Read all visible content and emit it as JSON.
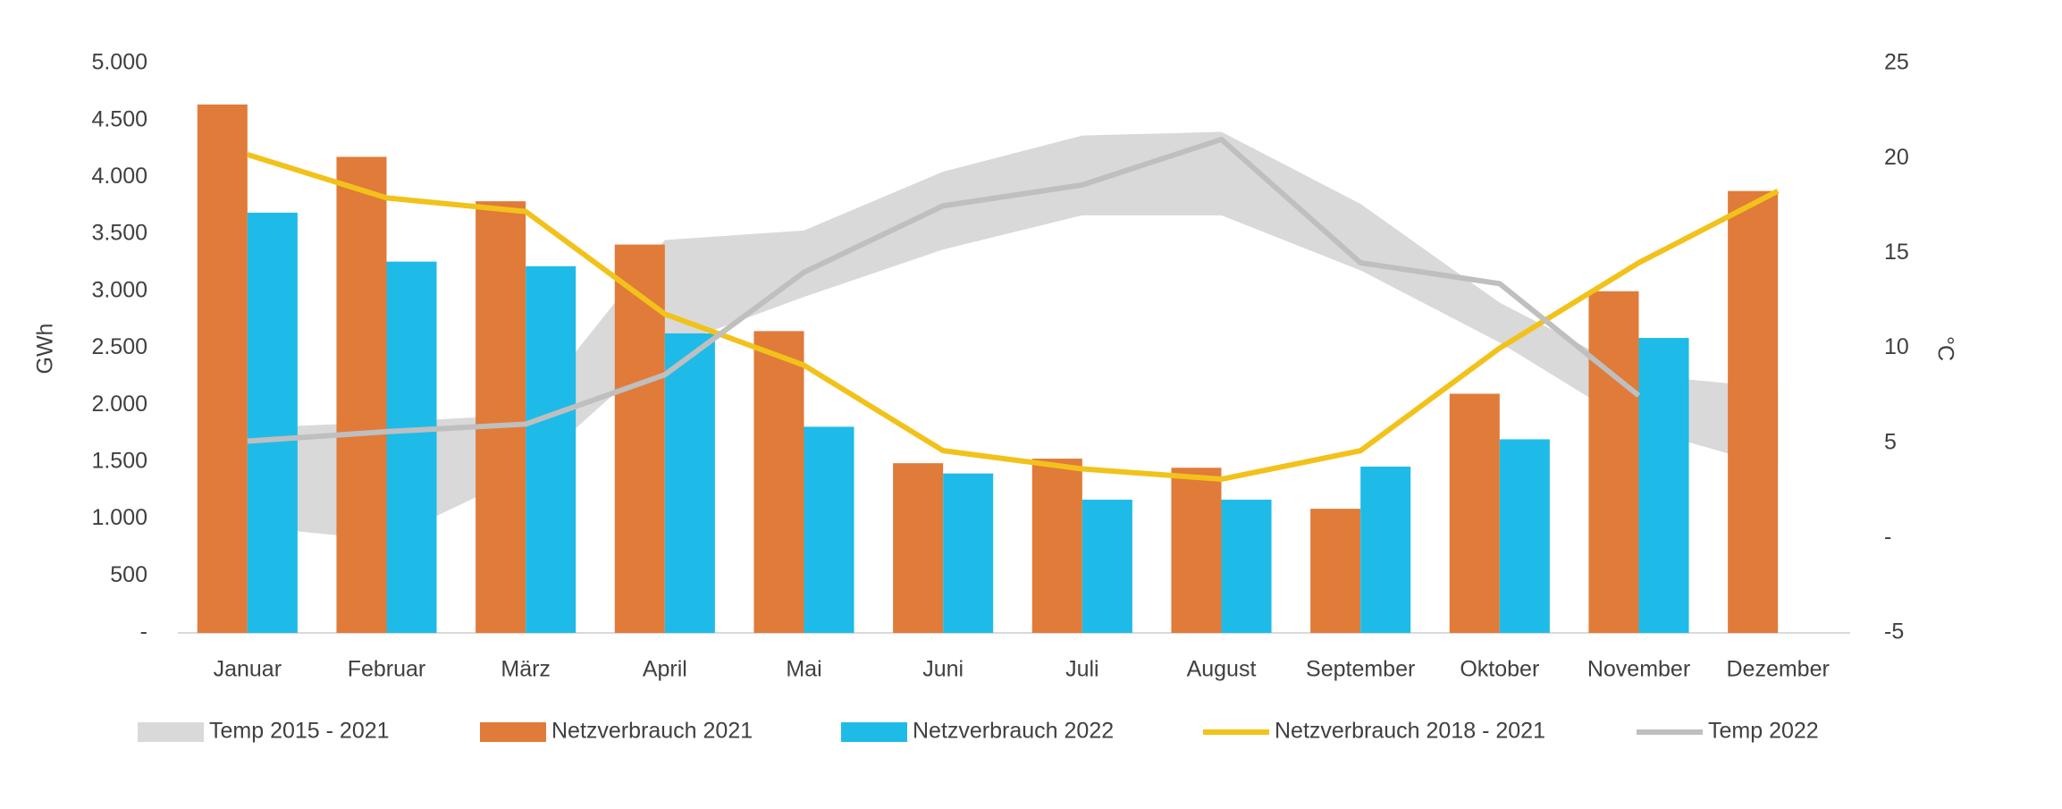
{
  "chart_data": {
    "type": "combo",
    "categories": [
      "Januar",
      "Februar",
      "März",
      "April",
      "Mai",
      "Juni",
      "Juli",
      "August",
      "September",
      "Oktober",
      "November",
      "Dezember"
    ],
    "ylabel": "GWh",
    "y2label": "°C",
    "ylim": [
      0,
      5000
    ],
    "yticks": [
      {
        "value": 0,
        "label": "-"
      },
      500,
      {
        "value": 1000,
        "label": "1.000"
      },
      {
        "value": 1500,
        "label": "1.500"
      },
      {
        "value": 2000,
        "label": "2.000"
      },
      {
        "value": 2500,
        "label": "2.500"
      },
      {
        "value": 3000,
        "label": "3.000"
      },
      {
        "value": 3500,
        "label": "3.500"
      },
      {
        "value": 4000,
        "label": "4.000"
      },
      {
        "value": 4500,
        "label": "4.500"
      },
      {
        "value": 5000,
        "label": "5.000"
      }
    ],
    "y2lim": [
      -5,
      25
    ],
    "y2ticks": [
      -5,
      {
        "value": 0,
        "label": "-"
      },
      5,
      10,
      15,
      20,
      25
    ],
    "grid": false,
    "legend": "bottom",
    "series": [
      {
        "name": "Temp 2015 - 2021",
        "type": "band",
        "axis": "y2",
        "color": "#d9d9d9",
        "low": [
          0.6,
          -0.1,
          3.4,
          10.0,
          12.7,
          15.2,
          17.0,
          17.0,
          14.1,
          10.3,
          5.8,
          3.7
        ],
        "high": [
          5.8,
          6.1,
          6.5,
          15.7,
          16.2,
          19.3,
          21.2,
          21.4,
          17.6,
          12.4,
          8.6,
          7.9
        ]
      },
      {
        "name": "Netzverbrauch 2021",
        "type": "bar",
        "color": "#e07b39",
        "values": [
          4640,
          4180,
          3790,
          3410,
          2650,
          1490,
          1530,
          1450,
          1090,
          2100,
          3000,
          3880
        ]
      },
      {
        "name": "Netzverbrauch 2022",
        "type": "bar",
        "color": "#1fbbe8",
        "values": [
          3690,
          3260,
          3220,
          2630,
          1810,
          1400,
          1170,
          1170,
          1460,
          1700,
          2590,
          null
        ]
      },
      {
        "name": "Netzverbrauch 2018 - 2021",
        "type": "line",
        "color": "#f2c21b",
        "values": [
          4200,
          3820,
          3700,
          2800,
          2350,
          1600,
          1440,
          1350,
          1600,
          2500,
          3250,
          3880
        ]
      },
      {
        "name": "Temp 2022",
        "type": "line",
        "axis": "y2",
        "color": "#bfbfbf",
        "values": [
          5.1,
          5.6,
          6.0,
          8.6,
          14.0,
          17.5,
          18.6,
          21.0,
          14.5,
          13.4,
          7.5,
          null
        ]
      }
    ]
  }
}
